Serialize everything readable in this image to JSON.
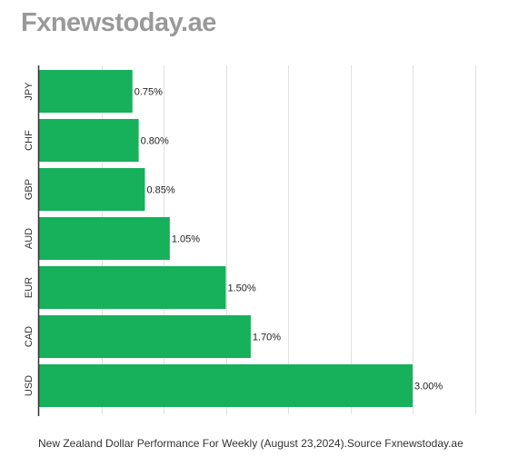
{
  "header": {
    "brand": "Fxnewstoday.ae"
  },
  "caption": "New Zealand Dollar Performance For Weekly (August 23,2024).Source Fxnewstoday.ae",
  "colors": {
    "bar": "#17b05b",
    "grid": "#e0e0e0",
    "axis": "#333333",
    "brand": "#999999"
  },
  "chart_data": {
    "type": "bar",
    "orientation": "horizontal",
    "categories": [
      "JPY",
      "CHF",
      "GBP",
      "AUD",
      "EUR",
      "CAD",
      "USD"
    ],
    "values": [
      0.75,
      0.8,
      0.85,
      1.05,
      1.5,
      1.7,
      3.0
    ],
    "data_labels": [
      "0.75%",
      "0.80%",
      "0.85%",
      "1.05%",
      "1.50%",
      "1.70%",
      "3.00%"
    ],
    "xlim": [
      0,
      3.5
    ],
    "grid": true,
    "legend": "none",
    "title": "",
    "xlabel": "",
    "ylabel": ""
  }
}
